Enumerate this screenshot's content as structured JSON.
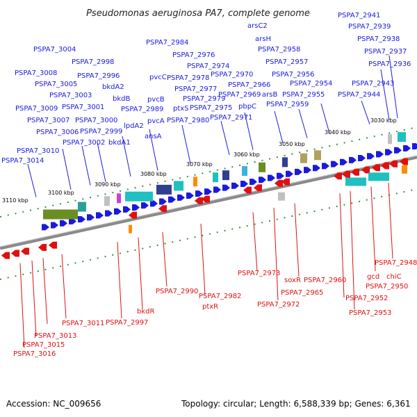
{
  "title": "Pseudomonas aeruginosa PA7, complete genome",
  "accession": "Accession: NC_009656",
  "topology": "Topology: circular; Length: 6,588,339 bp; Genes: 6,361",
  "colors": {
    "forward": "#1a1adc",
    "reverse": "#e01010",
    "backbone": "#8a8a8a",
    "tick": "#3c8c3c"
  },
  "ticks": [
    "3030 kbp",
    "3040 kbp",
    "3050 kbp",
    "3060 kbp",
    "3070 kbp",
    "3080 kbp",
    "3090 kbp",
    "3100 kbp",
    "3110 kbp"
  ],
  "top_labels": [
    "PSPA7_2941",
    "PSPA7_2939",
    "PSPA7_2938",
    "PSPA7_2937",
    "PSPA7_2936",
    "PSPA7_2943",
    "PSPA7_2944",
    "arsC2",
    "arsH",
    "PSPA7_2958",
    "PSPA7_2957",
    "PSPA7_2956",
    "PSPA7_2954",
    "PSPA7_2955",
    "PSPA7_2959",
    "arsB",
    "pbpC",
    "PSPA7_2966",
    "PSPA7_2969",
    "PSPA7_2970",
    "PSPA7_2971",
    "PSPA7_2974",
    "PSPA7_2975",
    "PSPA7_2976",
    "PSPA7_2977",
    "PSPA7_2978",
    "PSPA7_2979",
    "PSPA7_2980",
    "PSPA7_2984",
    "pvcC",
    "pvcB",
    "pvcA",
    "ptxS",
    "ansA",
    "lpdA2",
    "bkdB",
    "bkdA2",
    "bkdA1",
    "PSPA7_2989",
    "PSPA7_2998",
    "PSPA7_2996",
    "PSPA7_2999",
    "PSPA7_3000",
    "PSPA7_3001",
    "PSPA7_3002",
    "PSPA7_3003",
    "PSPA7_3004",
    "PSPA7_3005",
    "PSPA7_3006",
    "PSPA7_3007",
    "PSPA7_3008",
    "PSPA7_3009",
    "PSPA7_3010",
    "PSPA7_3014"
  ],
  "bottom_labels": [
    "PSPA7_2948",
    "chiC",
    "gcd",
    "PSPA7_2950",
    "PSPA7_2952",
    "PSPA7_2953",
    "PSPA7_2960",
    "soxR",
    "PSPA7_2965",
    "PSPA7_2972",
    "PSPA7_2973",
    "PSPA7_2982",
    "ptxR",
    "PSPA7_2990",
    "bkdR",
    "PSPA7_2997",
    "PSPA7_3011",
    "PSPA7_3013",
    "PSPA7_3015",
    "PSPA7_3016"
  ]
}
